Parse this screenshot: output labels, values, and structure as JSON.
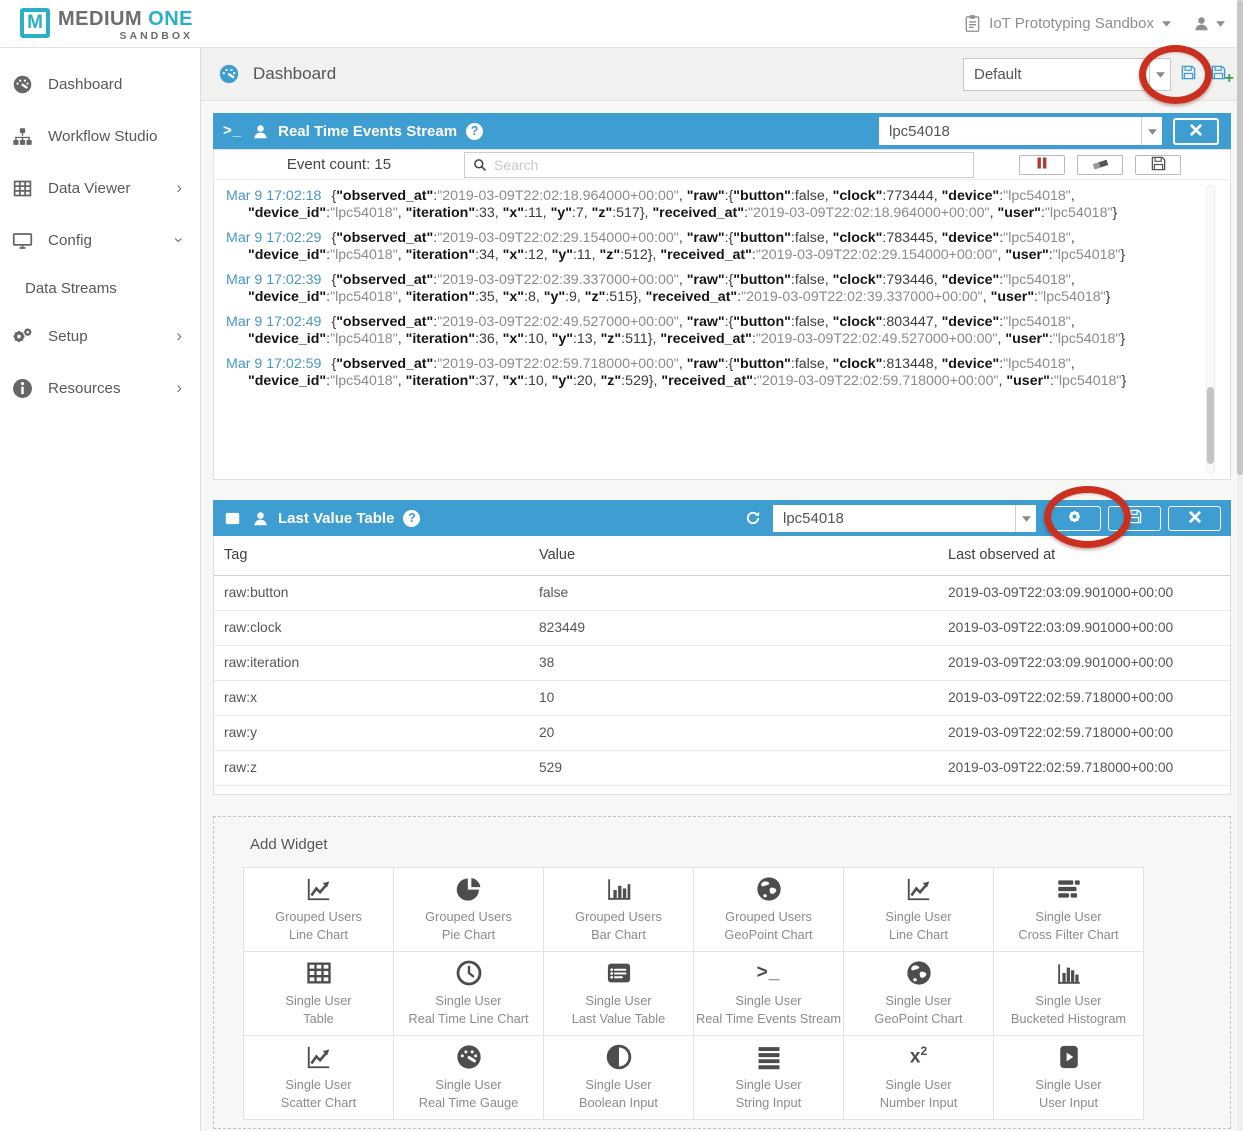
{
  "brand": {
    "logo_letter": "M",
    "name_part1": "MEDIUM",
    "name_part2": "ONE",
    "subtitle": "SANDBOX"
  },
  "topbar": {
    "workspace_label": "IoT Prototyping Sandbox"
  },
  "sidebar": {
    "items": [
      {
        "label": "Dashboard",
        "icon": "gauge-icon",
        "chevron": null,
        "sub": false
      },
      {
        "label": "Workflow Studio",
        "icon": "sitemap-icon",
        "chevron": null,
        "sub": false
      },
      {
        "label": "Data Viewer",
        "icon": "table-grid-icon",
        "chevron": "right",
        "sub": false
      },
      {
        "label": "Config",
        "icon": "monitor-icon",
        "chevron": "down",
        "sub": false
      },
      {
        "label": "Data Streams",
        "icon": null,
        "chevron": null,
        "sub": true
      },
      {
        "label": "Setup",
        "icon": "gears-icon",
        "chevron": "right",
        "sub": false
      },
      {
        "label": "Resources",
        "icon": "info-icon",
        "chevron": "right",
        "sub": false
      }
    ]
  },
  "dashboard_bar": {
    "title": "Dashboard",
    "view_selector_value": "Default"
  },
  "events_stream": {
    "title": "Real Time Events Stream",
    "device_selector_value": "lpc54018",
    "event_count_label": "Event count: 15",
    "search_placeholder": "Search",
    "entries": [
      {
        "timestamp": "Mar 9 17:02:18",
        "payload": "{\"observed_at\":\"2019-03-09T22:02:18.964000+00:00\", \"raw\":{\"button\":false, \"clock\":773444, \"device\":\"lpc54018\", \"device_id\":\"lpc54018\", \"iteration\":33, \"x\":11, \"y\":7, \"z\":517}, \"received_at\":\"2019-03-09T22:02:18.964000+00:00\", \"user\":\"lpc54018\"}"
      },
      {
        "timestamp": "Mar 9 17:02:29",
        "payload": "{\"observed_at\":\"2019-03-09T22:02:29.154000+00:00\", \"raw\":{\"button\":false, \"clock\":783445, \"device\":\"lpc54018\", \"device_id\":\"lpc54018\", \"iteration\":34, \"x\":12, \"y\":11, \"z\":512}, \"received_at\":\"2019-03-09T22:02:29.154000+00:00\", \"user\":\"lpc54018\"}"
      },
      {
        "timestamp": "Mar 9 17:02:39",
        "payload": "{\"observed_at\":\"2019-03-09T22:02:39.337000+00:00\", \"raw\":{\"button\":false, \"clock\":793446, \"device\":\"lpc54018\", \"device_id\":\"lpc54018\", \"iteration\":35, \"x\":8, \"y\":9, \"z\":515}, \"received_at\":\"2019-03-09T22:02:39.337000+00:00\", \"user\":\"lpc54018\"}"
      },
      {
        "timestamp": "Mar 9 17:02:49",
        "payload": "{\"observed_at\":\"2019-03-09T22:02:49.527000+00:00\", \"raw\":{\"button\":false, \"clock\":803447, \"device\":\"lpc54018\", \"device_id\":\"lpc54018\", \"iteration\":36, \"x\":10, \"y\":13, \"z\":511}, \"received_at\":\"2019-03-09T22:02:49.527000+00:00\", \"user\":\"lpc54018\"}"
      },
      {
        "timestamp": "Mar 9 17:02:59",
        "payload": "{\"observed_at\":\"2019-03-09T22:02:59.718000+00:00\", \"raw\":{\"button\":false, \"clock\":813448, \"device\":\"lpc54018\", \"device_id\":\"lpc54018\", \"iteration\":37, \"x\":10, \"y\":20, \"z\":529}, \"received_at\":\"2019-03-09T22:02:59.718000+00:00\", \"user\":\"lpc54018\"}"
      }
    ]
  },
  "last_value_table": {
    "title": "Last Value Table",
    "device_selector_value": "lpc54018",
    "columns": [
      "Tag",
      "Value",
      "Last observed at"
    ],
    "rows": [
      {
        "tag": "raw:button",
        "value": "false",
        "last_observed_at": "2019-03-09T22:03:09.901000+00:00"
      },
      {
        "tag": "raw:clock",
        "value": "823449",
        "last_observed_at": "2019-03-09T22:03:09.901000+00:00"
      },
      {
        "tag": "raw:iteration",
        "value": "38",
        "last_observed_at": "2019-03-09T22:03:09.901000+00:00"
      },
      {
        "tag": "raw:x",
        "value": "10",
        "last_observed_at": "2019-03-09T22:02:59.718000+00:00"
      },
      {
        "tag": "raw:y",
        "value": "20",
        "last_observed_at": "2019-03-09T22:02:59.718000+00:00"
      },
      {
        "tag": "raw:z",
        "value": "529",
        "last_observed_at": "2019-03-09T22:02:59.718000+00:00"
      }
    ]
  },
  "add_widget": {
    "title": "Add Widget",
    "widgets": [
      {
        "group": "Grouped Users",
        "name": "Line Chart",
        "icon": "line-chart-icon"
      },
      {
        "group": "Grouped Users",
        "name": "Pie Chart",
        "icon": "pie-chart-icon"
      },
      {
        "group": "Grouped Users",
        "name": "Bar Chart",
        "icon": "bar-chart-icon"
      },
      {
        "group": "Grouped Users",
        "name": "GeoPoint Chart",
        "icon": "globe-icon"
      },
      {
        "group": "Single User",
        "name": "Line Chart",
        "icon": "line-chart-icon"
      },
      {
        "group": "Single User",
        "name": "Cross Filter Chart",
        "icon": "cross-filter-icon"
      },
      {
        "group": "Single User",
        "name": "Table",
        "icon": "table-grid-icon"
      },
      {
        "group": "Single User",
        "name": "Real Time Line Chart",
        "icon": "clock-icon"
      },
      {
        "group": "Single User",
        "name": "Last Value Table",
        "icon": "list-icon"
      },
      {
        "group": "Single User",
        "name": "Real Time Events Stream",
        "icon": "terminal-icon"
      },
      {
        "group": "Single User",
        "name": "GeoPoint Chart",
        "icon": "globe-icon"
      },
      {
        "group": "Single User",
        "name": "Bucketed Histogram",
        "icon": "histogram-icon"
      },
      {
        "group": "Single User",
        "name": "Scatter Chart",
        "icon": "scatter-chart-icon"
      },
      {
        "group": "Single User",
        "name": "Real Time Gauge",
        "icon": "gauge-icon"
      },
      {
        "group": "Single User",
        "name": "Boolean Input",
        "icon": "boolean-icon"
      },
      {
        "group": "Single User",
        "name": "String Input",
        "icon": "string-icon"
      },
      {
        "group": "Single User",
        "name": "Number Input",
        "icon": "number-icon"
      },
      {
        "group": "Single User",
        "name": "User Input",
        "icon": "user-input-icon"
      }
    ]
  },
  "colors": {
    "accent_blue": "#3e9dd1",
    "brand_cyan": "#2bafc7",
    "annotation_red": "#c9301f",
    "pause_red": "#b03a33",
    "timestamp_blue": "#4795c8",
    "plus_green": "#3fa142"
  }
}
